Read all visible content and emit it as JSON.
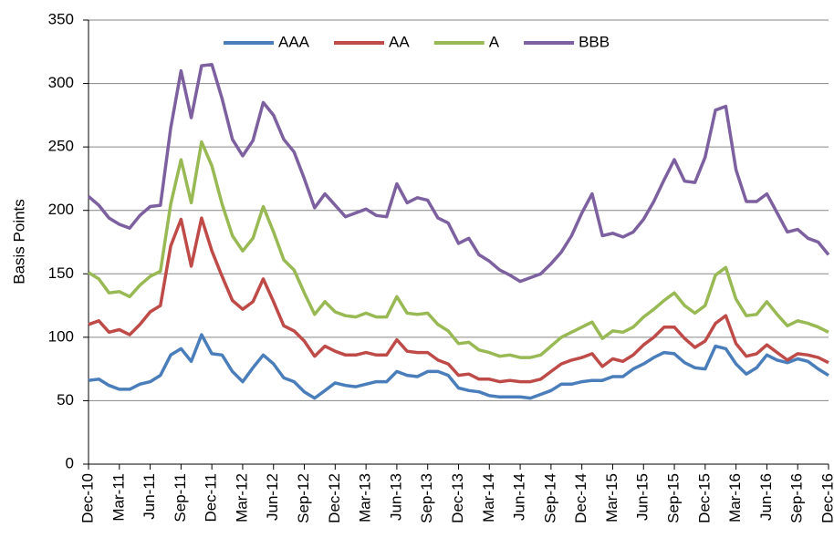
{
  "chart_data": {
    "type": "line",
    "y_label": "Basis Points",
    "categories": [
      "Dec-10",
      null,
      null,
      "Mar-11",
      null,
      null,
      "Jun-11",
      null,
      null,
      "Sep-11",
      null,
      null,
      "Dec-11",
      null,
      null,
      "Mar-12",
      null,
      null,
      "Jun-12",
      null,
      null,
      "Sep-12",
      null,
      null,
      "Dec-12",
      null,
      null,
      "Mar-13",
      null,
      null,
      "Jun-13",
      null,
      null,
      "Sep-13",
      null,
      null,
      "Dec-13",
      null,
      null,
      "Mar-14",
      null,
      null,
      "Jun-14",
      null,
      null,
      "Sep-14",
      null,
      null,
      "Dec-14",
      null,
      null,
      "Mar-15",
      null,
      null,
      "Jun-15",
      null,
      null,
      "Sep-15",
      null,
      null,
      "Dec-15",
      null,
      null,
      "Mar-16",
      null,
      null,
      "Jun-16",
      null,
      null,
      "Sep-16",
      null,
      null,
      "Dec-16"
    ],
    "series": [
      {
        "name": "AAA",
        "color": "#4a7ebb",
        "values": [
          66,
          67,
          62,
          59,
          59,
          63,
          65,
          70,
          86,
          91,
          81,
          102,
          87,
          86,
          73,
          65,
          76,
          86,
          79,
          68,
          65,
          57,
          52,
          58,
          64,
          62,
          61,
          63,
          65,
          65,
          73,
          70,
          69,
          73,
          73,
          70,
          60,
          58,
          57,
          54,
          53,
          53,
          53,
          52,
          55,
          58,
          63,
          63,
          65,
          66,
          66,
          69,
          69,
          75,
          79,
          84,
          88,
          87,
          80,
          76,
          75,
          93,
          91,
          79,
          71,
          76,
          86,
          82,
          80,
          83,
          81,
          75,
          70
        ]
      },
      {
        "name": "AA",
        "color": "#be4b48",
        "values": [
          110,
          113,
          104,
          106,
          102,
          110,
          120,
          125,
          172,
          193,
          156,
          194,
          168,
          148,
          129,
          122,
          128,
          146,
          128,
          109,
          105,
          97,
          85,
          93,
          89,
          86,
          86,
          88,
          86,
          86,
          98,
          89,
          88,
          88,
          82,
          79,
          70,
          71,
          67,
          67,
          65,
          66,
          65,
          65,
          67,
          73,
          79,
          82,
          84,
          87,
          77,
          83,
          81,
          86,
          94,
          100,
          108,
          108,
          99,
          92,
          97,
          111,
          117,
          95,
          85,
          87,
          94,
          88,
          82,
          87,
          86,
          84,
          80
        ]
      },
      {
        "name": "A",
        "color": "#98b954",
        "values": [
          151,
          146,
          135,
          136,
          132,
          141,
          148,
          152,
          205,
          240,
          206,
          254,
          235,
          205,
          180,
          168,
          178,
          203,
          183,
          161,
          153,
          135,
          118,
          128,
          120,
          117,
          116,
          119,
          116,
          116,
          132,
          119,
          118,
          119,
          110,
          105,
          95,
          96,
          90,
          88,
          85,
          86,
          84,
          84,
          86,
          93,
          100,
          104,
          108,
          112,
          99,
          105,
          104,
          108,
          116,
          122,
          129,
          135,
          125,
          119,
          125,
          149,
          155,
          130,
          117,
          118,
          128,
          118,
          109,
          113,
          111,
          108,
          104
        ]
      },
      {
        "name": "BBB",
        "color": "#7d60a0",
        "values": [
          211,
          204,
          194,
          189,
          186,
          196,
          203,
          204,
          265,
          310,
          273,
          314,
          315,
          288,
          256,
          243,
          255,
          285,
          275,
          256,
          246,
          225,
          202,
          213,
          204,
          195,
          198,
          201,
          196,
          195,
          221,
          206,
          210,
          208,
          194,
          190,
          174,
          178,
          165,
          160,
          153,
          149,
          144,
          147,
          150,
          158,
          167,
          180,
          198,
          213,
          180,
          182,
          179,
          183,
          193,
          207,
          224,
          240,
          223,
          222,
          242,
          279,
          282,
          232,
          207,
          207,
          213,
          198,
          183,
          185,
          178,
          175,
          165
        ]
      }
    ],
    "ylim": [
      0,
      350
    ],
    "yticks": [
      0,
      50,
      100,
      150,
      200,
      250,
      300,
      350
    ],
    "grid": true,
    "legend": "top"
  }
}
